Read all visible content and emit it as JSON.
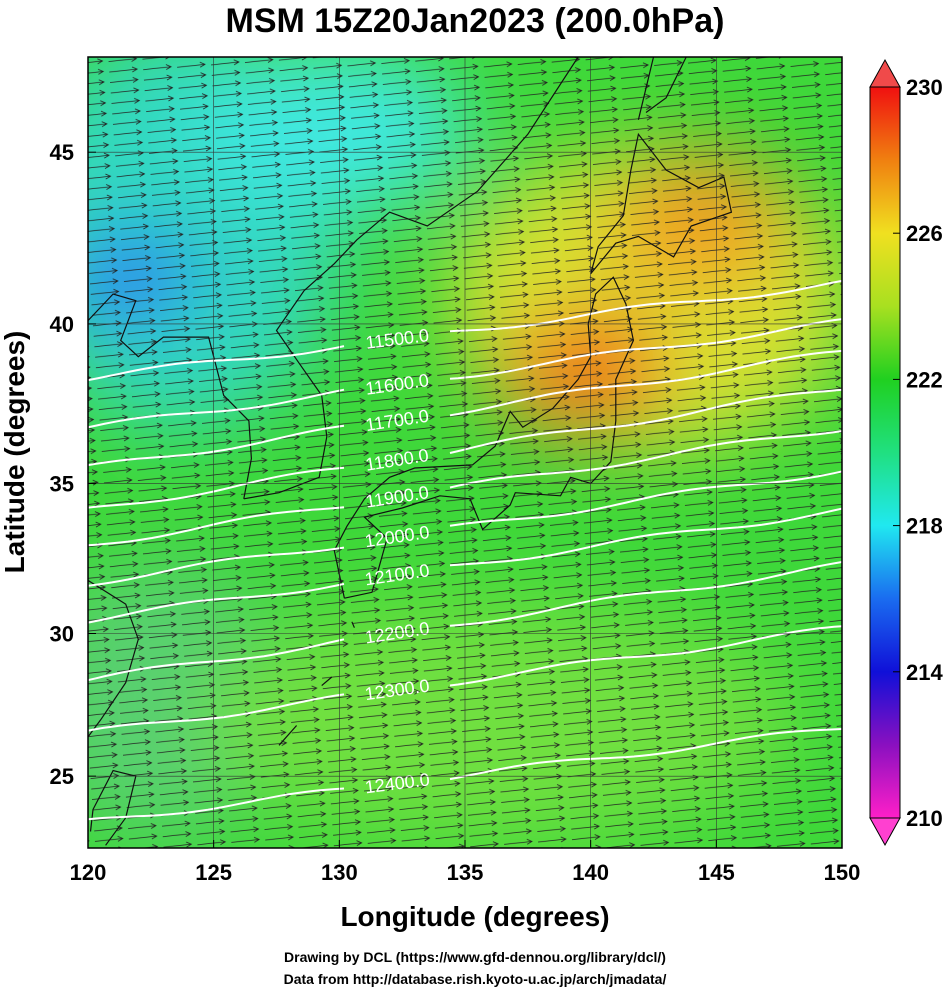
{
  "map": {
    "title": "MSM 15Z20Jan2023 (200.0hPa)",
    "x_label": "Longitude (degrees)",
    "y_label": "Latitude  (degrees)",
    "xlim": [
      120,
      150
    ],
    "xticks": [
      120,
      125,
      130,
      135,
      140,
      145,
      150
    ],
    "ylim": [
      22.4,
      47.6
    ],
    "yticks": [
      25,
      30,
      35,
      40,
      45
    ],
    "projection": "mercator",
    "colorbar": {
      "lim": [
        210,
        230
      ],
      "ticks": [
        210,
        214,
        218,
        222,
        226,
        230
      ]
    },
    "contour_labels": [
      "11500.0",
      "11600.0",
      "11700.0",
      "11800.0",
      "11900.0",
      "12000.0",
      "12100.0",
      "12200.0",
      "12300.0",
      "12400.0"
    ],
    "footer": [
      "Drawing by DCL (https://www.gfd-dennou.org/library/dcl/)",
      "Data from http://database.rish.kyoto-u.ac.jp/arch/jmadata/"
    ]
  }
}
